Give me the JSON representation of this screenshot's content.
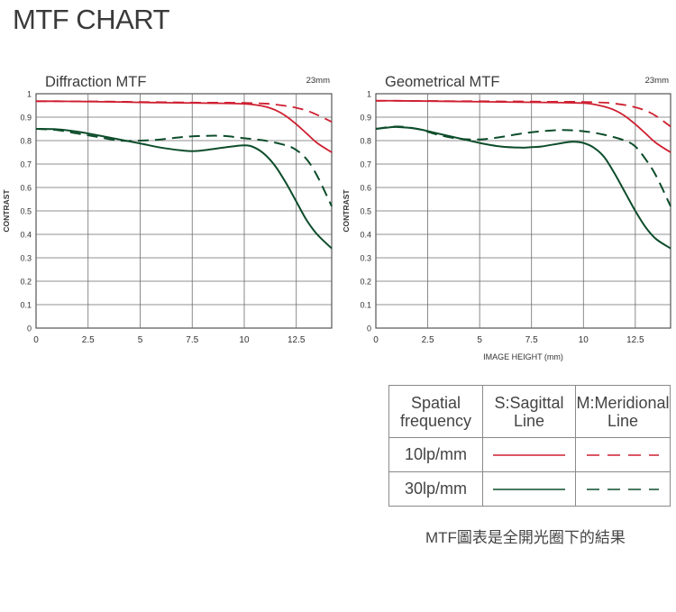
{
  "page": {
    "title": "MTF CHART",
    "footnote": "MTF圖表是全開光圈下的結果"
  },
  "colors": {
    "red": "#cf1f30",
    "green": "#0d4d2b",
    "grid": "#6d6d6d"
  },
  "legend": {
    "header": {
      "freq": [
        "Spatial",
        "frequency"
      ],
      "sagittal": [
        "S:Sagittal",
        "Line"
      ],
      "meridional": [
        "M:Meridional",
        "Line"
      ]
    },
    "rows": [
      {
        "label": "10lp/mm",
        "color": "#cf1f30"
      },
      {
        "label": "30lp/mm",
        "color": "#0d4d2b"
      }
    ]
  },
  "chart_data": [
    {
      "type": "line",
      "title": "Diffraction MTF",
      "focal_label": "23mm",
      "ylabel": "CONTRAST",
      "xlabel": "",
      "xlim": [
        0,
        14.2
      ],
      "ylim": [
        0,
        1
      ],
      "x_ticks": [
        0,
        2.5,
        5,
        7.5,
        10,
        12.5
      ],
      "x_tick_labels": [
        "0",
        "2.5",
        "5",
        "7.5",
        "10",
        "12.5"
      ],
      "y_ticks": [
        0,
        0.1,
        0.2,
        0.3,
        0.4,
        0.5,
        0.6,
        0.7,
        0.8,
        0.9,
        1
      ],
      "y_tick_labels": [
        "0",
        "0.1",
        "0.2",
        "0.3",
        "0.4",
        "0.5",
        "0.6",
        "0.7",
        "0.8",
        "0.9",
        "1"
      ],
      "grid": true,
      "series": [
        {
          "frequency": "10lp/mm",
          "line": "S",
          "color": "#cf1f30",
          "dash": false,
          "x": [
            0,
            1,
            2,
            3,
            4,
            5,
            6,
            7,
            8,
            9,
            10,
            10.5,
            11,
            11.5,
            12,
            12.5,
            13,
            13.5,
            14.2
          ],
          "y": [
            0.968,
            0.968,
            0.967,
            0.966,
            0.965,
            0.963,
            0.962,
            0.961,
            0.96,
            0.959,
            0.957,
            0.953,
            0.945,
            0.93,
            0.905,
            0.87,
            0.83,
            0.79,
            0.75
          ]
        },
        {
          "frequency": "10lp/mm",
          "line": "M",
          "color": "#cf1f30",
          "dash": true,
          "x": [
            0,
            1,
            2,
            3,
            4,
            5,
            6,
            7,
            8,
            9,
            10,
            11,
            11.5,
            12,
            12.5,
            13,
            13.5,
            14.2
          ],
          "y": [
            0.968,
            0.968,
            0.967,
            0.967,
            0.966,
            0.965,
            0.964,
            0.963,
            0.962,
            0.962,
            0.961,
            0.958,
            0.954,
            0.948,
            0.94,
            0.928,
            0.91,
            0.88
          ]
        },
        {
          "frequency": "30lp/mm",
          "line": "S",
          "color": "#0d4d2b",
          "dash": false,
          "x": [
            0,
            1,
            2,
            3,
            4,
            5,
            6,
            7,
            7.5,
            8,
            9,
            10,
            10.5,
            11,
            11.5,
            12,
            12.5,
            13,
            13.5,
            14.2
          ],
          "y": [
            0.85,
            0.848,
            0.838,
            0.822,
            0.805,
            0.788,
            0.77,
            0.758,
            0.755,
            0.758,
            0.77,
            0.78,
            0.77,
            0.74,
            0.69,
            0.62,
            0.54,
            0.46,
            0.4,
            0.34
          ]
        },
        {
          "frequency": "30lp/mm",
          "line": "M",
          "color": "#0d4d2b",
          "dash": true,
          "x": [
            0,
            1,
            2,
            3,
            4,
            5,
            6,
            7,
            8,
            9,
            10,
            11,
            12,
            12.5,
            13,
            13.5,
            14.2
          ],
          "y": [
            0.85,
            0.845,
            0.83,
            0.815,
            0.8,
            0.8,
            0.805,
            0.815,
            0.82,
            0.82,
            0.81,
            0.8,
            0.78,
            0.76,
            0.72,
            0.65,
            0.52
          ]
        }
      ]
    },
    {
      "type": "line",
      "title": "Geometrical MTF",
      "focal_label": "23mm",
      "ylabel": "CONTRAST",
      "xlabel": "IMAGE HEIGHT (mm)",
      "xlim": [
        0,
        14.2
      ],
      "ylim": [
        0,
        1
      ],
      "x_ticks": [
        0,
        2.5,
        5,
        7.5,
        10,
        12.5
      ],
      "x_tick_labels": [
        "0",
        "2.5",
        "5",
        "7.5",
        "10",
        "12.5"
      ],
      "y_ticks": [
        0,
        0.1,
        0.2,
        0.3,
        0.4,
        0.5,
        0.6,
        0.7,
        0.8,
        0.9,
        1
      ],
      "y_tick_labels": [
        "0",
        "0.1",
        "0.2",
        "0.3",
        "0.4",
        "0.5",
        "0.6",
        "0.7",
        "0.8",
        "0.9",
        "1"
      ],
      "grid": true,
      "series": [
        {
          "frequency": "10lp/mm",
          "line": "S",
          "color": "#cf1f30",
          "dash": false,
          "x": [
            0,
            1,
            2,
            3,
            4,
            5,
            6,
            7,
            8,
            9,
            10,
            10.5,
            11,
            11.5,
            12,
            12.5,
            13,
            13.5,
            14.2
          ],
          "y": [
            0.97,
            0.97,
            0.969,
            0.968,
            0.967,
            0.966,
            0.965,
            0.964,
            0.963,
            0.962,
            0.96,
            0.955,
            0.945,
            0.93,
            0.905,
            0.87,
            0.83,
            0.79,
            0.75
          ]
        },
        {
          "frequency": "10lp/mm",
          "line": "M",
          "color": "#cf1f30",
          "dash": true,
          "x": [
            0,
            1,
            2,
            3,
            4,
            5,
            6,
            7,
            8,
            9,
            10,
            11,
            11.5,
            12,
            12.5,
            13,
            13.5,
            14.2
          ],
          "y": [
            0.97,
            0.97,
            0.969,
            0.969,
            0.968,
            0.968,
            0.967,
            0.967,
            0.966,
            0.966,
            0.965,
            0.962,
            0.958,
            0.952,
            0.942,
            0.928,
            0.905,
            0.86
          ]
        },
        {
          "frequency": "30lp/mm",
          "line": "S",
          "color": "#0d4d2b",
          "dash": false,
          "x": [
            0,
            0.5,
            1,
            2,
            3,
            4,
            5,
            6,
            7,
            7.5,
            8,
            9,
            9.5,
            10,
            10.5,
            11,
            11.5,
            12,
            12.5,
            13,
            13.5,
            14.2
          ],
          "y": [
            0.85,
            0.855,
            0.858,
            0.85,
            0.83,
            0.81,
            0.79,
            0.775,
            0.77,
            0.772,
            0.775,
            0.79,
            0.795,
            0.79,
            0.77,
            0.73,
            0.66,
            0.58,
            0.5,
            0.43,
            0.38,
            0.34
          ]
        },
        {
          "frequency": "30lp/mm",
          "line": "M",
          "color": "#0d4d2b",
          "dash": true,
          "x": [
            0,
            1,
            2,
            3,
            4,
            5,
            6,
            7,
            8,
            9,
            10,
            11,
            12,
            12.5,
            13,
            13.5,
            14.2
          ],
          "y": [
            0.85,
            0.86,
            0.85,
            0.825,
            0.808,
            0.805,
            0.815,
            0.83,
            0.84,
            0.845,
            0.84,
            0.825,
            0.8,
            0.775,
            0.72,
            0.65,
            0.52
          ]
        }
      ]
    }
  ]
}
